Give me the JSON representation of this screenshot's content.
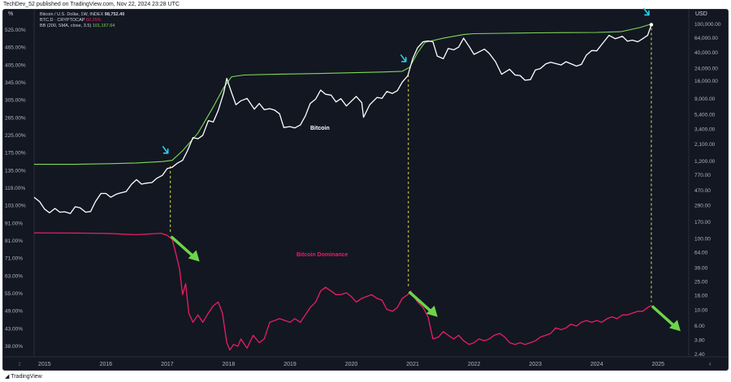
{
  "header": {
    "publisher": "TechDev_52 published on TradingView.com, Nov 22, 2024 23:28 UTC"
  },
  "legend": {
    "line1_label": "Bitcoin / U.S. Dollar, 1W, INDEX",
    "line1_value": "98,752.40",
    "line2_label": "BTC.D · CRYPTOCAP",
    "line2_value": "60.25%",
    "line3_label": "BB (200, SMA, close, 3.5)",
    "line3_value": "101,167.64"
  },
  "footer": {
    "brand": "TradingView"
  },
  "colors": {
    "bg": "#131722",
    "btc": "#ffffff",
    "bb": "#7ed957",
    "dominance": "#e91e63",
    "arrow": "#6cd44a",
    "signal": "#29d0e8",
    "vline": "#e3e34a",
    "text": "#b2b5be"
  },
  "chart_data": {
    "type": "line",
    "left_axis": {
      "label": "%",
      "ticks": [
        "525.00%",
        "465.00%",
        "405.00%",
        "345.00%",
        "305.00%",
        "265.00%",
        "225.00%",
        "175.00%",
        "135.00%",
        "119.00%",
        "103.00%",
        "91.00%",
        "81.00%",
        "71.00%",
        "63.00%",
        "55.00%",
        "49.00%",
        "43.00%",
        "38.00%"
      ]
    },
    "right_axis": {
      "label": "USD",
      "scale": "log",
      "ticks": [
        "100,000.00",
        "64,000.00",
        "40,000.00",
        "24,000.00",
        "16,000.00",
        "9,000.00",
        "5,400.00",
        "3,400.00",
        "2,100.00",
        "1,200.00",
        "770.00",
        "470.00",
        "290.00",
        "170.00",
        "100.00",
        "64.00",
        "39.00",
        "25.00",
        "16.00",
        "10.00",
        "6.00",
        "3.80",
        "2.40"
      ]
    },
    "x_axis": {
      "ticks": [
        "2015",
        "2016",
        "2017",
        "2018",
        "2019",
        "2020",
        "2021",
        "2022",
        "2023",
        "2024",
        "2025"
      ]
    },
    "x_ticks_extra": {
      "left": "2",
      "right": "4"
    },
    "annotations": {
      "btc_label": "Bitcoin",
      "dominance_label": "Bitcoin Dominance"
    },
    "series": [
      {
        "name": "Bitcoin",
        "points": [
          [
            2014.83,
            380
          ],
          [
            2014.92,
            330
          ],
          [
            2015.0,
            260
          ],
          [
            2015.08,
            230
          ],
          [
            2015.17,
            265
          ],
          [
            2015.25,
            235
          ],
          [
            2015.33,
            238
          ],
          [
            2015.42,
            225
          ],
          [
            2015.5,
            280
          ],
          [
            2015.58,
            270
          ],
          [
            2015.67,
            235
          ],
          [
            2015.75,
            240
          ],
          [
            2015.83,
            330
          ],
          [
            2015.92,
            430
          ],
          [
            2016.0,
            430
          ],
          [
            2016.08,
            380
          ],
          [
            2016.17,
            420
          ],
          [
            2016.25,
            440
          ],
          [
            2016.33,
            455
          ],
          [
            2016.42,
            580
          ],
          [
            2016.5,
            670
          ],
          [
            2016.58,
            580
          ],
          [
            2016.67,
            600
          ],
          [
            2016.75,
            610
          ],
          [
            2016.83,
            700
          ],
          [
            2016.92,
            770
          ],
          [
            2017.0,
            960
          ],
          [
            2017.08,
            1000
          ],
          [
            2017.17,
            1150
          ],
          [
            2017.25,
            1250
          ],
          [
            2017.33,
            1700
          ],
          [
            2017.42,
            2600
          ],
          [
            2017.5,
            2500
          ],
          [
            2017.58,
            2800
          ],
          [
            2017.67,
            4500
          ],
          [
            2017.75,
            4300
          ],
          [
            2017.83,
            6200
          ],
          [
            2017.92,
            11000
          ],
          [
            2017.97,
            17500
          ],
          [
            2018.05,
            11000
          ],
          [
            2018.12,
            7500
          ],
          [
            2018.2,
            8500
          ],
          [
            2018.3,
            9200
          ],
          [
            2018.42,
            6500
          ],
          [
            2018.5,
            7800
          ],
          [
            2018.58,
            6400
          ],
          [
            2018.67,
            6600
          ],
          [
            2018.75,
            6300
          ],
          [
            2018.83,
            5600
          ],
          [
            2018.9,
            3600
          ],
          [
            2019.0,
            3700
          ],
          [
            2019.08,
            3550
          ],
          [
            2019.17,
            3900
          ],
          [
            2019.25,
            5200
          ],
          [
            2019.33,
            7800
          ],
          [
            2019.42,
            9000
          ],
          [
            2019.5,
            12000
          ],
          [
            2019.58,
            10500
          ],
          [
            2019.67,
            10200
          ],
          [
            2019.75,
            8200
          ],
          [
            2019.83,
            9100
          ],
          [
            2019.92,
            7200
          ],
          [
            2020.0,
            8400
          ],
          [
            2020.08,
            9800
          ],
          [
            2020.17,
            8000
          ],
          [
            2020.2,
            5000
          ],
          [
            2020.3,
            7500
          ],
          [
            2020.42,
            9500
          ],
          [
            2020.5,
            9200
          ],
          [
            2020.58,
            11500
          ],
          [
            2020.67,
            10800
          ],
          [
            2020.75,
            11800
          ],
          [
            2020.83,
            15500
          ],
          [
            2020.92,
            19000
          ],
          [
            2021.0,
            33000
          ],
          [
            2021.08,
            47000
          ],
          [
            2021.17,
            57000
          ],
          [
            2021.25,
            58500
          ],
          [
            2021.33,
            57000
          ],
          [
            2021.4,
            36000
          ],
          [
            2021.5,
            33000
          ],
          [
            2021.58,
            46000
          ],
          [
            2021.67,
            44000
          ],
          [
            2021.75,
            48000
          ],
          [
            2021.83,
            64000
          ],
          [
            2021.92,
            49000
          ],
          [
            2022.0,
            38000
          ],
          [
            2022.08,
            41000
          ],
          [
            2022.17,
            45000
          ],
          [
            2022.25,
            39000
          ],
          [
            2022.35,
            30000
          ],
          [
            2022.45,
            20000
          ],
          [
            2022.58,
            23500
          ],
          [
            2022.67,
            19500
          ],
          [
            2022.75,
            19200
          ],
          [
            2022.83,
            16500
          ],
          [
            2022.92,
            16800
          ],
          [
            2023.0,
            23000
          ],
          [
            2023.08,
            24000
          ],
          [
            2023.17,
            28000
          ],
          [
            2023.25,
            29500
          ],
          [
            2023.42,
            27000
          ],
          [
            2023.5,
            30000
          ],
          [
            2023.67,
            26000
          ],
          [
            2023.75,
            27500
          ],
          [
            2023.83,
            37000
          ],
          [
            2023.92,
            43000
          ],
          [
            2024.0,
            42500
          ],
          [
            2024.08,
            52000
          ],
          [
            2024.2,
            70000
          ],
          [
            2024.3,
            63000
          ],
          [
            2024.42,
            68000
          ],
          [
            2024.5,
            58000
          ],
          [
            2024.58,
            60000
          ],
          [
            2024.67,
            57000
          ],
          [
            2024.75,
            63000
          ],
          [
            2024.83,
            70000
          ],
          [
            2024.89,
            98752
          ]
        ]
      },
      {
        "name": "BB (200, SMA, close, 3.5)",
        "points": [
          [
            2014.83,
            1100
          ],
          [
            2015.5,
            1100
          ],
          [
            2016.0,
            1120
          ],
          [
            2016.5,
            1150
          ],
          [
            2016.92,
            1200
          ],
          [
            2017.08,
            1250
          ],
          [
            2017.25,
            1700
          ],
          [
            2017.5,
            3000
          ],
          [
            2017.75,
            7000
          ],
          [
            2017.92,
            13000
          ],
          [
            2018.05,
            18500
          ],
          [
            2018.25,
            19500
          ],
          [
            2018.75,
            20000
          ],
          [
            2019.5,
            20500
          ],
          [
            2020.0,
            21000
          ],
          [
            2020.5,
            21500
          ],
          [
            2020.83,
            22000
          ],
          [
            2020.95,
            25000
          ],
          [
            2021.08,
            40000
          ],
          [
            2021.2,
            56000
          ],
          [
            2021.5,
            64000
          ],
          [
            2021.83,
            72000
          ],
          [
            2022.0,
            74000
          ],
          [
            2022.5,
            75000
          ],
          [
            2023.0,
            76000
          ],
          [
            2023.5,
            76500
          ],
          [
            2024.0,
            77000
          ],
          [
            2024.4,
            79000
          ],
          [
            2024.7,
            90000
          ],
          [
            2024.89,
            101167
          ]
        ]
      },
      {
        "name": "BTC.D · CRYPTOCAP",
        "points": [
          [
            2014.83,
            99.5
          ],
          [
            2015.5,
            99.4
          ],
          [
            2016.0,
            99.2
          ],
          [
            2016.5,
            98.5
          ],
          [
            2016.9,
            99.3
          ],
          [
            2017.0,
            98.2
          ],
          [
            2017.08,
            96
          ],
          [
            2017.15,
            87
          ],
          [
            2017.2,
            80
          ],
          [
            2017.25,
            66
          ],
          [
            2017.3,
            72
          ],
          [
            2017.35,
            56
          ],
          [
            2017.42,
            51
          ],
          [
            2017.5,
            55
          ],
          [
            2017.58,
            51
          ],
          [
            2017.67,
            56
          ],
          [
            2017.75,
            60
          ],
          [
            2017.83,
            62
          ],
          [
            2017.9,
            56
          ],
          [
            2017.97,
            40
          ],
          [
            2018.02,
            36
          ],
          [
            2018.08,
            39
          ],
          [
            2018.15,
            38
          ],
          [
            2018.2,
            42
          ],
          [
            2018.3,
            37
          ],
          [
            2018.4,
            44
          ],
          [
            2018.5,
            40
          ],
          [
            2018.58,
            42
          ],
          [
            2018.67,
            51
          ],
          [
            2018.75,
            52
          ],
          [
            2018.83,
            53
          ],
          [
            2018.92,
            52
          ],
          [
            2019.0,
            51
          ],
          [
            2019.08,
            53
          ],
          [
            2019.17,
            51
          ],
          [
            2019.25,
            55
          ],
          [
            2019.33,
            59
          ],
          [
            2019.42,
            62
          ],
          [
            2019.5,
            68
          ],
          [
            2019.58,
            70
          ],
          [
            2019.67,
            68
          ],
          [
            2019.75,
            66
          ],
          [
            2019.83,
            66
          ],
          [
            2019.92,
            67
          ],
          [
            2020.0,
            65
          ],
          [
            2020.08,
            62
          ],
          [
            2020.17,
            64
          ],
          [
            2020.25,
            65
          ],
          [
            2020.33,
            66
          ],
          [
            2020.42,
            64
          ],
          [
            2020.5,
            63
          ],
          [
            2020.58,
            58
          ],
          [
            2020.67,
            57
          ],
          [
            2020.75,
            59
          ],
          [
            2020.83,
            64
          ],
          [
            2020.92,
            66
          ],
          [
            2020.97,
            68
          ],
          [
            2021.02,
            65
          ],
          [
            2021.08,
            62
          ],
          [
            2021.17,
            59
          ],
          [
            2021.25,
            54
          ],
          [
            2021.33,
            42
          ],
          [
            2021.42,
            43
          ],
          [
            2021.5,
            46
          ],
          [
            2021.58,
            44
          ],
          [
            2021.67,
            42
          ],
          [
            2021.75,
            44
          ],
          [
            2021.83,
            41
          ],
          [
            2021.92,
            39
          ],
          [
            2022.0,
            40
          ],
          [
            2022.08,
            42
          ],
          [
            2022.17,
            41
          ],
          [
            2022.25,
            42
          ],
          [
            2022.33,
            44
          ],
          [
            2022.42,
            45
          ],
          [
            2022.5,
            43
          ],
          [
            2022.58,
            40
          ],
          [
            2022.67,
            39
          ],
          [
            2022.75,
            40
          ],
          [
            2022.83,
            39
          ],
          [
            2022.92,
            40
          ],
          [
            2023.0,
            41
          ],
          [
            2023.08,
            43
          ],
          [
            2023.17,
            44
          ],
          [
            2023.25,
            45
          ],
          [
            2023.33,
            48
          ],
          [
            2023.42,
            47
          ],
          [
            2023.5,
            48
          ],
          [
            2023.58,
            50
          ],
          [
            2023.67,
            49
          ],
          [
            2023.75,
            51
          ],
          [
            2023.83,
            52
          ],
          [
            2023.92,
            51
          ],
          [
            2024.0,
            52
          ],
          [
            2024.08,
            51
          ],
          [
            2024.17,
            53
          ],
          [
            2024.25,
            54
          ],
          [
            2024.33,
            53
          ],
          [
            2024.42,
            55
          ],
          [
            2024.5,
            55
          ],
          [
            2024.58,
            56
          ],
          [
            2024.67,
            57
          ],
          [
            2024.75,
            57
          ],
          [
            2024.83,
            59
          ],
          [
            2024.89,
            60.25
          ]
        ]
      }
    ]
  }
}
